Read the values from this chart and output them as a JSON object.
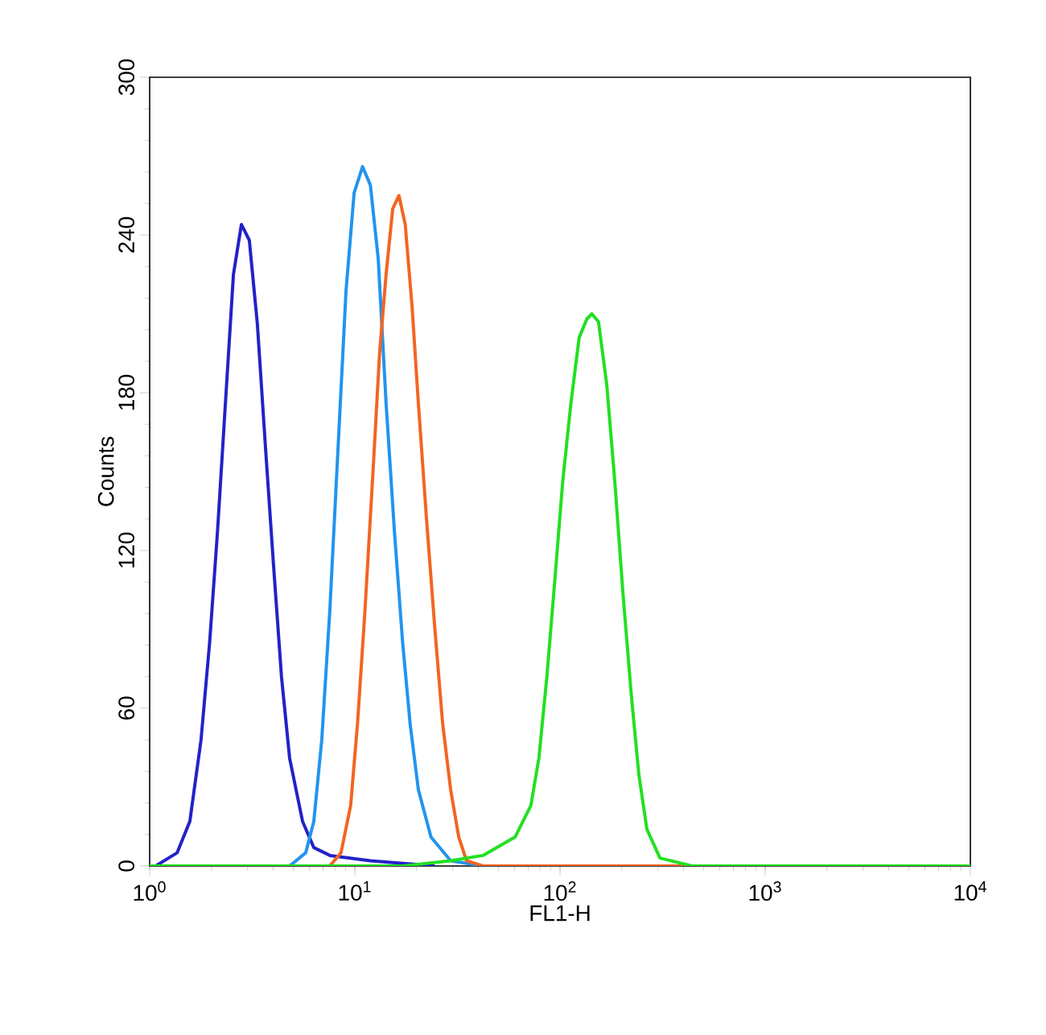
{
  "chart_data": {
    "type": "line",
    "xlabel": "FL1-H",
    "ylabel": "Counts",
    "log": "x",
    "line_style": "solid",
    "xlim": [
      1,
      10000
    ],
    "ylim": [
      0,
      300
    ],
    "xticks": [
      {
        "value": 1,
        "label": "10$^{0}$"
      },
      {
        "value": 10,
        "label": "10$^{1}$"
      },
      {
        "value": 100,
        "label": "10$^{2}$"
      },
      {
        "value": 1000,
        "label": "10$^{3}$"
      },
      {
        "value": 10000,
        "label": "10$^{4}$"
      }
    ],
    "yticks": [
      0,
      60,
      120,
      180,
      240,
      300
    ],
    "series": [
      {
        "color": "#2222c8",
        "x": [
          1.07,
          1.36,
          1.57,
          1.78,
          1.96,
          2.14,
          2.34,
          2.56,
          2.8,
          3.06,
          3.35,
          3.67,
          4.01,
          4.39,
          4.81,
          5.56,
          6.31,
          7.56,
          11.9,
          24.5
        ],
        "values": [
          0,
          5,
          17,
          48,
          85,
          127,
          176,
          225,
          244,
          238,
          206,
          159,
          115,
          72,
          41,
          17,
          7,
          4,
          2,
          0
        ]
      },
      {
        "color": "#2294ee",
        "x": [
          4.81,
          5.76,
          6.31,
          6.9,
          7.55,
          8.27,
          9.06,
          9.92,
          10.9,
          11.9,
          13.0,
          14.2,
          15.6,
          17.1,
          18.6,
          20.4,
          23.5,
          29.3,
          42.1
        ],
        "values": [
          0,
          5,
          17,
          48,
          97,
          158,
          219,
          256,
          266,
          259,
          231,
          176,
          127,
          85,
          54,
          29,
          11,
          2,
          0
        ]
      },
      {
        "color": "#f26522",
        "x": [
          7.55,
          8.56,
          9.54,
          10.3,
          11.2,
          12.3,
          13.2,
          14.2,
          15.3,
          16.4,
          17.6,
          19.0,
          20.4,
          22.3,
          24.5,
          26.8,
          29.3,
          32.1,
          35.0,
          42.1,
          9400
        ],
        "values": [
          0,
          5,
          23,
          54,
          97,
          152,
          195,
          225,
          250,
          255,
          244,
          213,
          176,
          133,
          91,
          54,
          29,
          11,
          2,
          0,
          0
        ]
      },
      {
        "color": "#22e022",
        "x": [
          1,
          17.1,
          29.3,
          42.1,
          60.4,
          72.1,
          78.9,
          86.3,
          94.4,
          103,
          113,
          124,
          135,
          143,
          154,
          169,
          185,
          203,
          222,
          242,
          265,
          307,
          440,
          10000
        ],
        "values": [
          0,
          0,
          2,
          4,
          11,
          23,
          41,
          72,
          109,
          146,
          176,
          201,
          208,
          210,
          207,
          183,
          146,
          103,
          66,
          35,
          14,
          3,
          0,
          0
        ]
      }
    ]
  }
}
